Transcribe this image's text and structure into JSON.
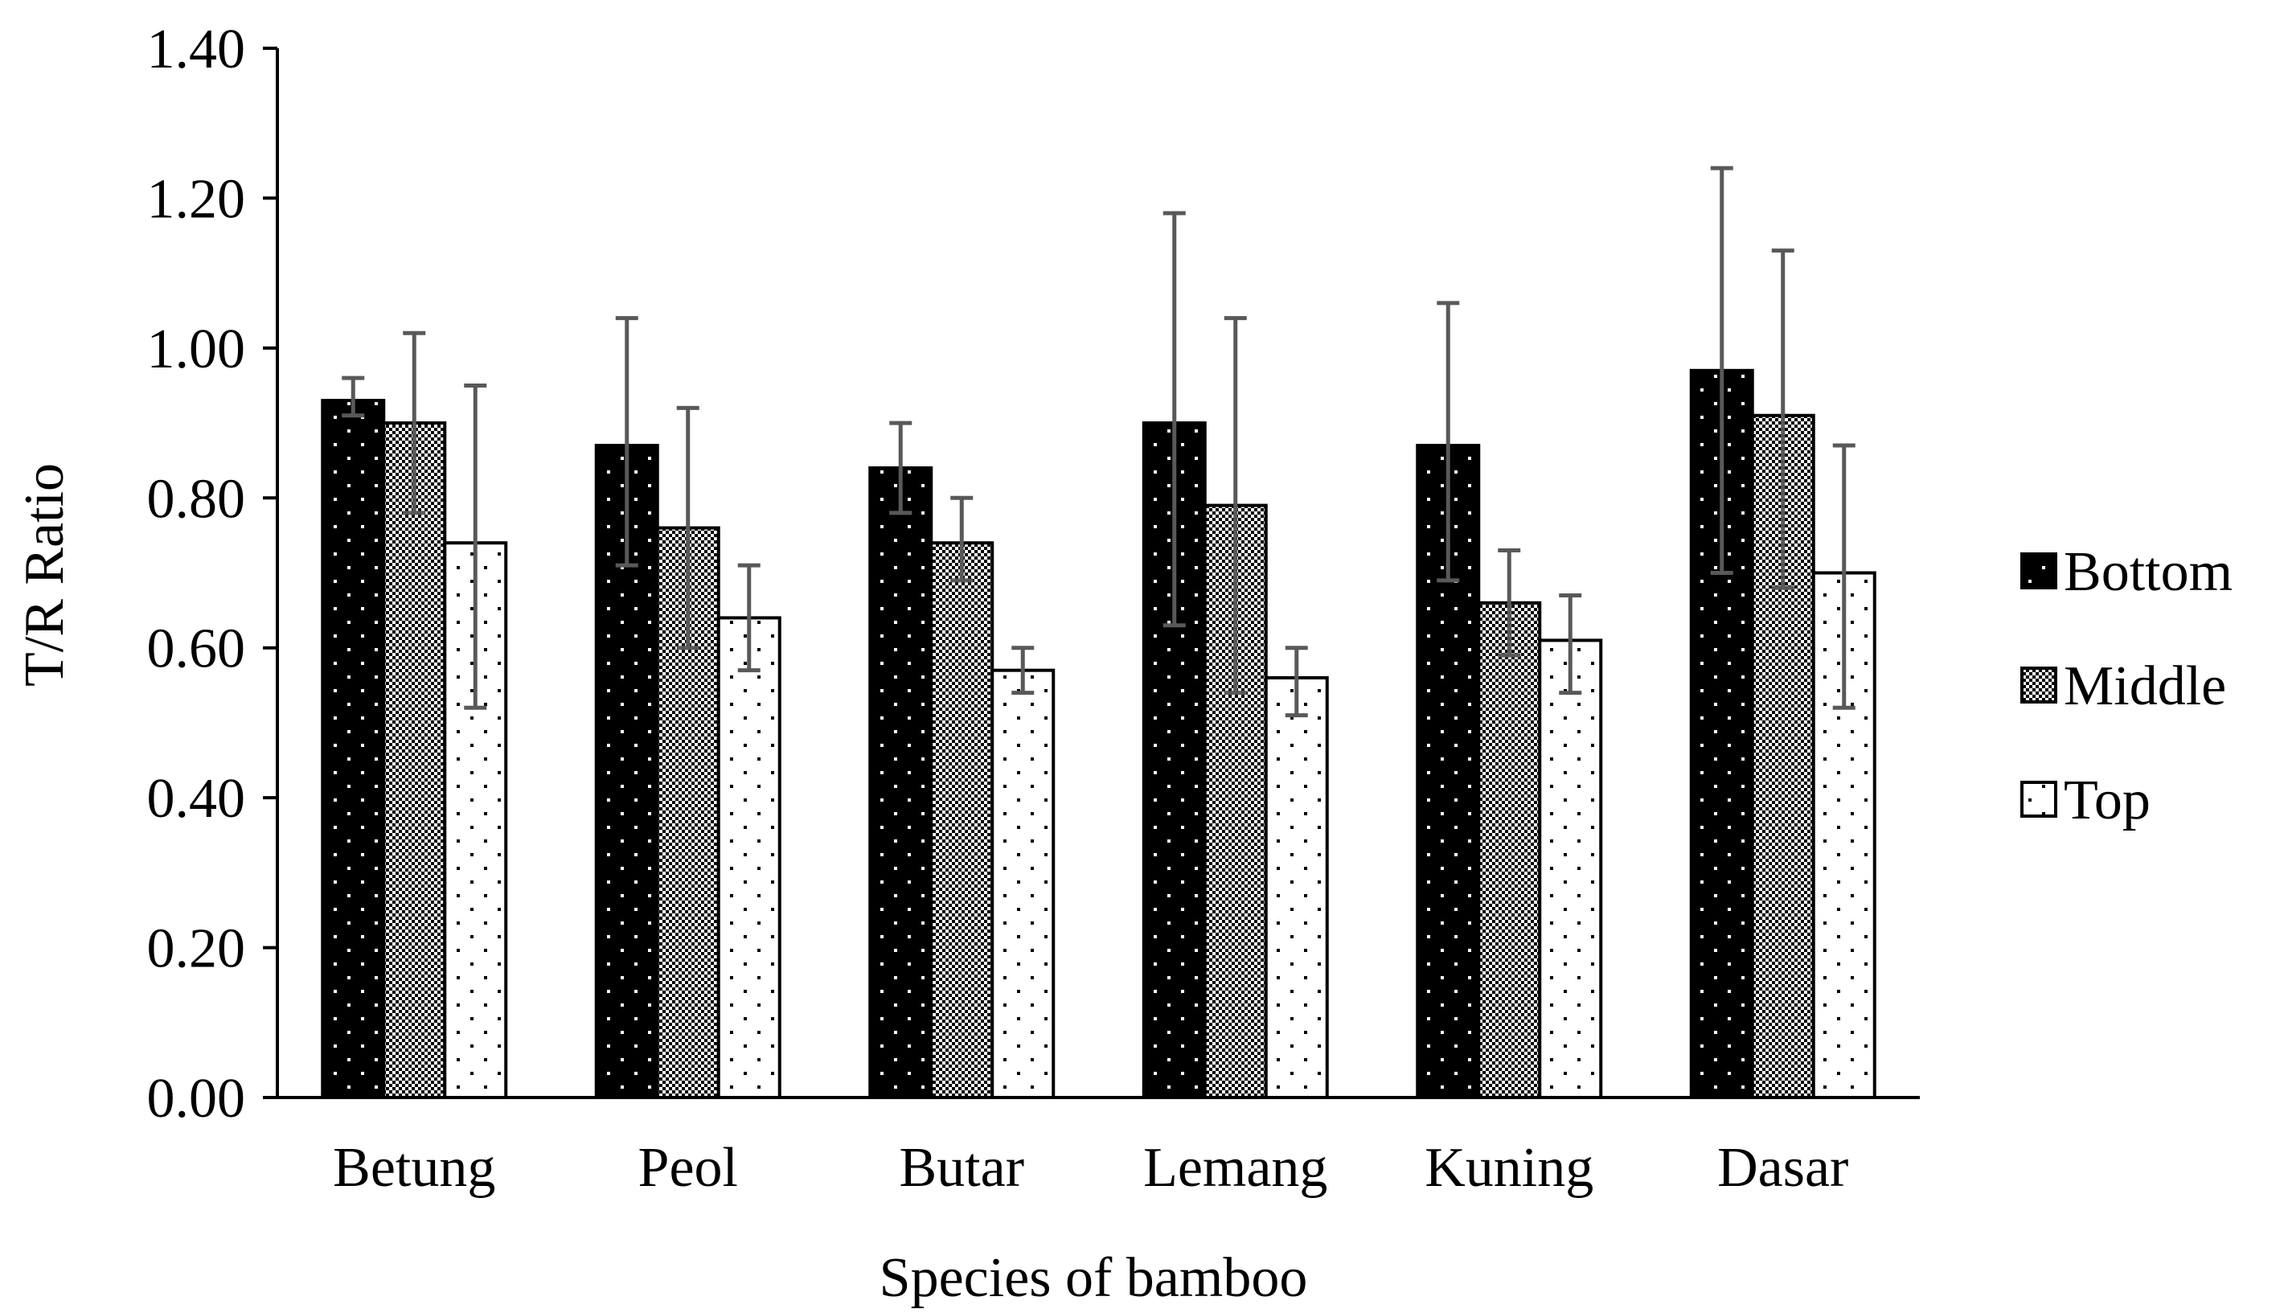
{
  "chart_data": {
    "type": "bar",
    "title": "",
    "xlabel": "Species of bamboo",
    "ylabel": "T/R Ratio",
    "ylim": [
      0,
      1.4
    ],
    "yticks": [
      0.0,
      0.2,
      0.4,
      0.6,
      0.8,
      1.0,
      1.2,
      1.4
    ],
    "ytick_labels": [
      "0.00",
      "0.20",
      "0.40",
      "0.60",
      "0.80",
      "1.00",
      "1.20",
      "1.40"
    ],
    "categories": [
      "Betung",
      "Peol",
      "Butar",
      "Lemang",
      "Kuning",
      "Dasar"
    ],
    "series": [
      {
        "name": "Bottom",
        "pattern": "bottom",
        "values": [
          0.93,
          0.87,
          0.84,
          0.9,
          0.87,
          0.97
        ],
        "err_low": [
          0.91,
          0.71,
          0.78,
          0.63,
          0.69,
          0.7
        ],
        "err_high": [
          0.96,
          1.04,
          0.9,
          1.18,
          1.06,
          1.24
        ]
      },
      {
        "name": "Middle",
        "pattern": "middle",
        "values": [
          0.9,
          0.76,
          0.74,
          0.79,
          0.66,
          0.91
        ],
        "err_low": [
          0.78,
          0.6,
          0.69,
          0.54,
          0.59,
          0.68
        ],
        "err_high": [
          1.02,
          0.92,
          0.8,
          1.04,
          0.73,
          1.13
        ]
      },
      {
        "name": "Top",
        "pattern": "top",
        "values": [
          0.74,
          0.64,
          0.57,
          0.56,
          0.61,
          0.7
        ],
        "err_low": [
          0.52,
          0.57,
          0.54,
          0.51,
          0.54,
          0.52
        ],
        "err_high": [
          0.95,
          0.71,
          0.6,
          0.6,
          0.67,
          0.87
        ]
      }
    ],
    "legend": {
      "position": "right",
      "entries": [
        "Bottom",
        "Middle",
        "Top"
      ]
    },
    "grid": false,
    "error_bars": true,
    "colors": {
      "bottom_fill": "#000000",
      "middle_fill": "#6e6e6e",
      "top_fill": "#ffffff",
      "error_bar": "#595959",
      "axis": "#000000"
    }
  }
}
